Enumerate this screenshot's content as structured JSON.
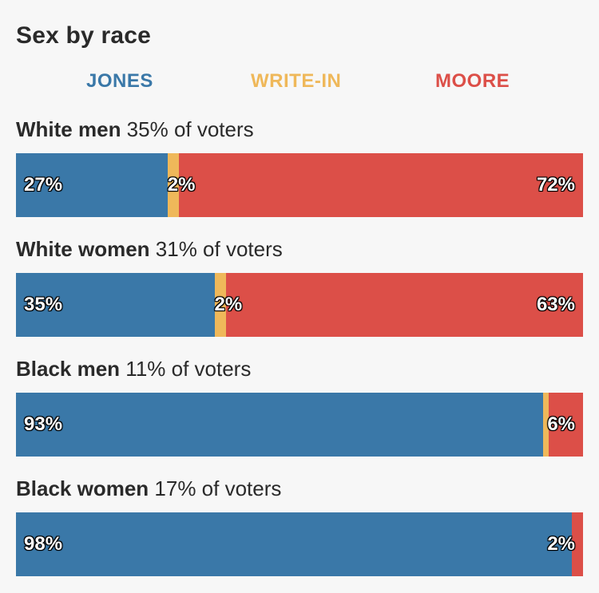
{
  "chart_data": {
    "type": "bar",
    "orientation": "horizontal",
    "stacked": true,
    "title": "Sex by race",
    "series": [
      {
        "name": "JONES",
        "color": "#3a78a8",
        "values": [
          27,
          35,
          93,
          98
        ]
      },
      {
        "name": "WRITE-IN",
        "color": "#efb85a",
        "values": [
          2,
          2,
          1,
          0
        ]
      },
      {
        "name": "MOORE",
        "color": "#dc4f48",
        "values": [
          72,
          63,
          6,
          2
        ]
      }
    ],
    "groups": [
      {
        "category": "White men",
        "share": "35% of voters",
        "labels": {
          "jones": "27%",
          "writein": "2%",
          "moore": "72%"
        }
      },
      {
        "category": "White women",
        "share": "31% of voters",
        "labels": {
          "jones": "35%",
          "writein": "2%",
          "moore": "63%"
        }
      },
      {
        "category": "Black men",
        "share": "11% of voters",
        "labels": {
          "jones": "93%",
          "writein": "",
          "moore": "6%"
        }
      },
      {
        "category": "Black women",
        "share": "17% of voters",
        "labels": {
          "jones": "98%",
          "writein": "",
          "moore": "2%"
        }
      }
    ],
    "legend_placement": "top",
    "xlim": [
      0,
      100
    ]
  }
}
